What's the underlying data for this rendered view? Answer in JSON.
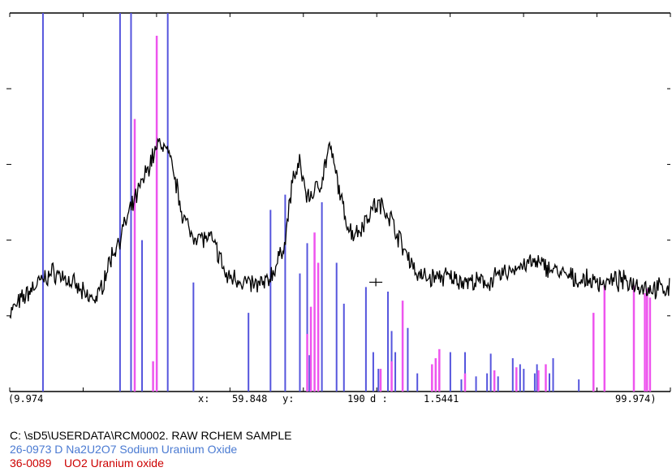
{
  "chart_data": {
    "type": "line",
    "title": "",
    "xlabel": "",
    "ylabel": "",
    "xlim": [
      9.974,
      99.974
    ],
    "ylim": [
      0,
      250
    ],
    "colors": {
      "pattern": "#000000",
      "sodium_uranium_oxide": "#5555dd",
      "uo2": "#ee55ee",
      "axes": "#000000"
    },
    "status": {
      "x_min": "(9.974",
      "x_label": "x:",
      "x_value": "59.848",
      "y_label": "y:",
      "y_value": "190",
      "d_label": "d :",
      "d_value": "1.5441",
      "x_max": "99.974)"
    },
    "pattern": [
      [
        9.974,
        52
      ],
      [
        11.5,
        60
      ],
      [
        13.0,
        68
      ],
      [
        14.5,
        74
      ],
      [
        16.0,
        79
      ],
      [
        17.5,
        75
      ],
      [
        19.0,
        69
      ],
      [
        20.5,
        62
      ],
      [
        22.0,
        62
      ],
      [
        23.5,
        85
      ],
      [
        25.0,
        102
      ],
      [
        26.5,
        120
      ],
      [
        28.0,
        138
      ],
      [
        29.5,
        156
      ],
      [
        30.5,
        165
      ],
      [
        31.5,
        158
      ],
      [
        32.5,
        140
      ],
      [
        33.5,
        118
      ],
      [
        34.5,
        105
      ],
      [
        36.0,
        102
      ],
      [
        37.5,
        100
      ],
      [
        38.5,
        90
      ],
      [
        39.5,
        75
      ],
      [
        40.5,
        76
      ],
      [
        42.0,
        72
      ],
      [
        43.5,
        70
      ],
      [
        45.0,
        72
      ],
      [
        46.5,
        85
      ],
      [
        47.5,
        100
      ],
      [
        48.5,
        140
      ],
      [
        49.5,
        150
      ],
      [
        50.5,
        128
      ],
      [
        51.5,
        132
      ],
      [
        52.5,
        140
      ],
      [
        53.5,
        162
      ],
      [
        54.5,
        142
      ],
      [
        55.5,
        118
      ],
      [
        56.5,
        105
      ],
      [
        57.5,
        106
      ],
      [
        58.5,
        114
      ],
      [
        59.5,
        122
      ],
      [
        60.5,
        123
      ],
      [
        61.5,
        118
      ],
      [
        62.5,
        108
      ],
      [
        63.5,
        95
      ],
      [
        64.5,
        88
      ],
      [
        65.5,
        77
      ],
      [
        67.0,
        75
      ],
      [
        69.0,
        76
      ],
      [
        71.0,
        74
      ],
      [
        73.0,
        72
      ],
      [
        75.0,
        72
      ],
      [
        77.0,
        77
      ],
      [
        79.0,
        82
      ],
      [
        81.0,
        85
      ],
      [
        83.0,
        83
      ],
      [
        85.0,
        78
      ],
      [
        87.0,
        74
      ],
      [
        89.0,
        73
      ],
      [
        91.0,
        72
      ],
      [
        93.0,
        73
      ],
      [
        95.0,
        72
      ],
      [
        97.0,
        68
      ],
      [
        99.974,
        68
      ]
    ],
    "series": [
      {
        "key": "sodium_uranium_oxide",
        "bars": [
          [
            14.5,
            250
          ],
          [
            25.0,
            250
          ],
          [
            26.5,
            250
          ],
          [
            28.0,
            100
          ],
          [
            30.0,
            165
          ],
          [
            31.5,
            250
          ],
          [
            35.0,
            72
          ],
          [
            42.5,
            52
          ],
          [
            45.5,
            120
          ],
          [
            47.5,
            130
          ],
          [
            49.5,
            78
          ],
          [
            50.5,
            98
          ],
          [
            50.8,
            24
          ],
          [
            52.0,
            52
          ],
          [
            52.5,
            125
          ],
          [
            54.5,
            85
          ],
          [
            55.5,
            58
          ],
          [
            58.5,
            69
          ],
          [
            59.5,
            26
          ],
          [
            60.2,
            15
          ],
          [
            61.5,
            66
          ],
          [
            62.0,
            40
          ],
          [
            62.5,
            26
          ],
          [
            64.2,
            42
          ],
          [
            65.5,
            12
          ],
          [
            68.0,
            11
          ],
          [
            68.5,
            20
          ],
          [
            70.0,
            26
          ],
          [
            71.5,
            8
          ],
          [
            72.0,
            26
          ],
          [
            73.5,
            10
          ],
          [
            75.0,
            12
          ],
          [
            75.5,
            25
          ],
          [
            76.5,
            10
          ],
          [
            78.5,
            22
          ],
          [
            79.5,
            18
          ],
          [
            80.0,
            15
          ],
          [
            81.5,
            12
          ],
          [
            81.8,
            18
          ],
          [
            83.5,
            12
          ],
          [
            84.0,
            22
          ],
          [
            87.5,
            8
          ],
          [
            89.5,
            8
          ]
        ]
      },
      {
        "key": "uo2",
        "bars": [
          [
            27.0,
            180
          ],
          [
            30.0,
            235
          ],
          [
            29.5,
            20
          ],
          [
            50.5,
            38
          ],
          [
            51.0,
            56
          ],
          [
            51.5,
            105
          ],
          [
            52.0,
            85
          ],
          [
            60.5,
            15
          ],
          [
            62.0,
            20
          ],
          [
            63.5,
            60
          ],
          [
            67.5,
            18
          ],
          [
            68.0,
            22
          ],
          [
            68.5,
            28
          ],
          [
            72.0,
            12
          ],
          [
            76.0,
            14
          ],
          [
            79.0,
            16
          ],
          [
            82.0,
            14
          ],
          [
            83.0,
            18
          ],
          [
            89.5,
            52
          ],
          [
            91.0,
            70
          ],
          [
            95.0,
            70
          ],
          [
            96.5,
            65
          ],
          [
            96.8,
            68
          ],
          [
            97.2,
            62
          ]
        ]
      }
    ]
  },
  "captions": [
    {
      "text": "C: \\sD5\\USERDATA\\RCM0002. RAW RCHEM SAMPLE",
      "color": "#000000"
    },
    {
      "text": "26-0973 D Na2U2O7 Sodium Uranium Oxide",
      "color": "#4a7ad2"
    },
    {
      "text": "36-0089    UO2 Uranium oxide",
      "color": "#cc0000"
    }
  ]
}
